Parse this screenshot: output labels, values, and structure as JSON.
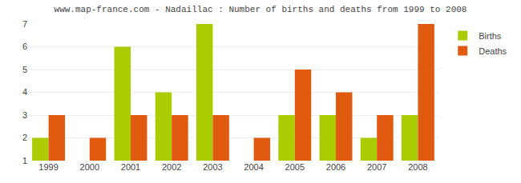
{
  "chart_data": {
    "type": "bar",
    "title": "www.map-france.com - Nadaillac : Number of births and deaths from 1999 to 2008",
    "categories": [
      "1999",
      "2000",
      "2001",
      "2002",
      "2003",
      "2004",
      "2005",
      "2006",
      "2007",
      "2008"
    ],
    "series": [
      {
        "name": "Births",
        "color": "#aacc00",
        "values": [
          2,
          1,
          6,
          4,
          7,
          1,
          3,
          3,
          2,
          3
        ]
      },
      {
        "name": "Deaths",
        "color": "#e05a10",
        "values": [
          3,
          2,
          3,
          3,
          3,
          2,
          5,
          4,
          3,
          7
        ]
      }
    ],
    "ylim": [
      1,
      7
    ],
    "yticks": [
      1,
      2,
      3,
      4,
      5,
      6,
      7
    ],
    "grid": true,
    "legend": "upper right"
  }
}
